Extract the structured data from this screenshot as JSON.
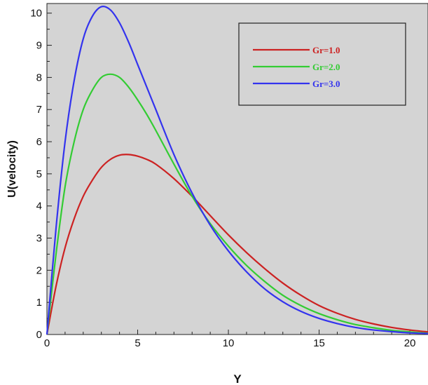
{
  "chart_data": {
    "type": "line",
    "title": "",
    "xlabel": "Y",
    "ylabel": "U(velocity)",
    "xlim": [
      0,
      21
    ],
    "ylim": [
      0,
      10.3
    ],
    "xticks": [
      "0",
      "5",
      "10",
      "15",
      "20"
    ],
    "yticks": [
      "0",
      "1",
      "2",
      "3",
      "4",
      "5",
      "6",
      "7",
      "8",
      "9",
      "10"
    ],
    "grid": false,
    "legend_position": "top-right",
    "plot_background": "#d4d4d4",
    "series": [
      {
        "name": "Gr=1.0",
        "color": "#cc2222",
        "x": [
          0,
          0.5,
          1,
          1.5,
          2,
          2.5,
          3,
          3.5,
          4,
          4.5,
          5,
          5.5,
          6,
          7,
          8,
          9,
          10,
          11,
          12,
          13,
          14,
          15,
          16,
          17,
          18,
          19,
          20,
          21
        ],
        "y": [
          0,
          1.5,
          2.7,
          3.6,
          4.3,
          4.8,
          5.2,
          5.45,
          5.58,
          5.6,
          5.55,
          5.45,
          5.3,
          4.85,
          4.3,
          3.7,
          3.1,
          2.55,
          2.05,
          1.6,
          1.22,
          0.9,
          0.66,
          0.47,
          0.33,
          0.22,
          0.14,
          0.08
        ]
      },
      {
        "name": "Gr=2.0",
        "color": "#33cc33",
        "x": [
          0,
          0.5,
          1,
          1.5,
          2,
          2.5,
          3,
          3.5,
          4,
          4.5,
          5,
          5.5,
          6,
          7,
          8,
          9,
          10,
          11,
          12,
          13,
          14,
          15,
          16,
          17,
          18,
          19,
          20,
          21
        ],
        "y": [
          0,
          2.5,
          4.6,
          6.0,
          7.0,
          7.6,
          8.0,
          8.1,
          8.0,
          7.7,
          7.3,
          6.85,
          6.35,
          5.3,
          4.3,
          3.45,
          2.75,
          2.15,
          1.65,
          1.22,
          0.9,
          0.65,
          0.46,
          0.31,
          0.21,
          0.13,
          0.08,
          0.04
        ]
      },
      {
        "name": "Gr=3.0",
        "color": "#3333ee",
        "x": [
          0,
          0.5,
          1,
          1.5,
          2,
          2.5,
          3,
          3.5,
          4,
          4.5,
          5,
          5.5,
          6,
          7,
          8,
          9,
          10,
          11,
          12,
          13,
          14,
          15,
          16,
          17,
          18,
          19,
          20,
          21
        ],
        "y": [
          0,
          3.3,
          6.0,
          7.9,
          9.2,
          9.9,
          10.2,
          10.1,
          9.7,
          9.1,
          8.4,
          7.7,
          7.0,
          5.6,
          4.4,
          3.4,
          2.6,
          1.95,
          1.42,
          1.02,
          0.72,
          0.5,
          0.34,
          0.22,
          0.14,
          0.09,
          0.05,
          0.03
        ]
      }
    ]
  }
}
